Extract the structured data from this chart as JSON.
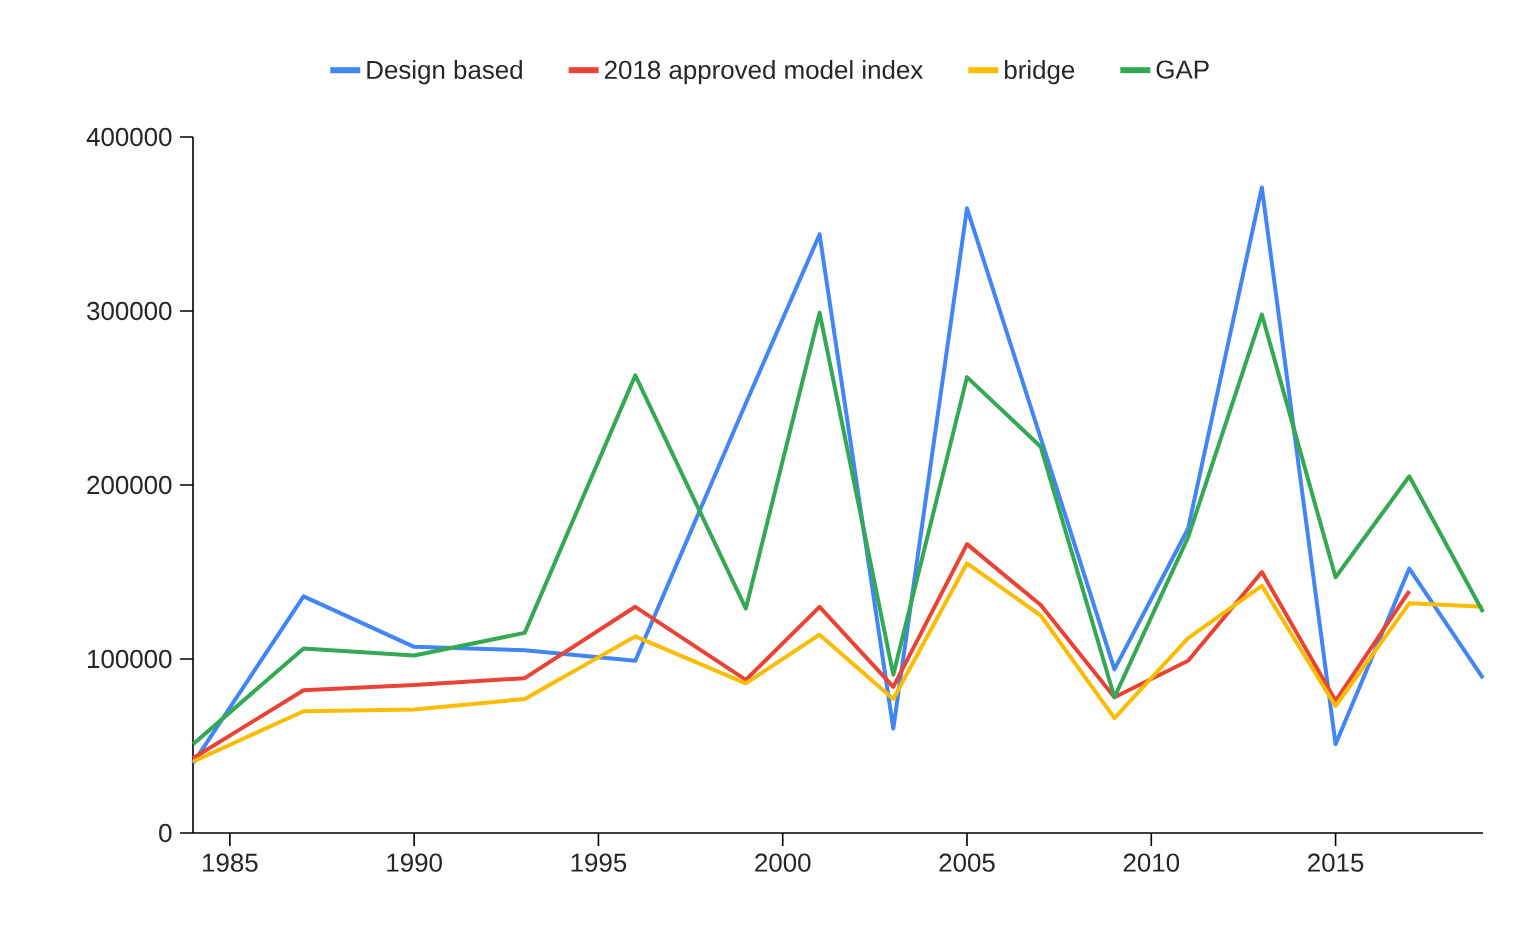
{
  "chart_data": {
    "type": "line",
    "x": [
      1984,
      1987,
      1990,
      1993,
      1996,
      1999,
      2001,
      2003,
      2005,
      2007,
      2009,
      2011,
      2013,
      2015,
      2017,
      2019
    ],
    "series": [
      {
        "name": "Design based",
        "color": "#4285f4",
        "values": [
          40000,
          136000,
          107000,
          105000,
          99000,
          247000,
          344000,
          60000,
          359000,
          227000,
          94000,
          175000,
          371000,
          51000,
          152000,
          89000
        ]
      },
      {
        "name": "2018 approved model index",
        "color": "#ea4335",
        "values": [
          43000,
          82000,
          85000,
          89000,
          130000,
          88000,
          130000,
          84000,
          166000,
          131000,
          78000,
          99000,
          150000,
          76000,
          139000,
          null
        ]
      },
      {
        "name": "bridge",
        "color": "#fbbc04",
        "values": [
          41000,
          70000,
          71000,
          77000,
          113000,
          86000,
          114000,
          77000,
          155000,
          125000,
          66000,
          112000,
          142000,
          73000,
          132000,
          130000
        ]
      },
      {
        "name": "GAP",
        "color": "#34a853",
        "values": [
          51000,
          106000,
          102000,
          115000,
          263000,
          129000,
          299000,
          91000,
          262000,
          222000,
          78000,
          170000,
          298000,
          147000,
          205000,
          127000
        ]
      }
    ],
    "xlim": [
      1984,
      2019
    ],
    "ylim": [
      0,
      400000
    ],
    "xticks": [
      1985,
      1990,
      1995,
      2000,
      2005,
      2010,
      2015
    ],
    "yticks": [
      0,
      100000,
      200000,
      300000,
      400000
    ],
    "grid": false,
    "legend": "top",
    "marker": "none",
    "line_style": "solid"
  }
}
